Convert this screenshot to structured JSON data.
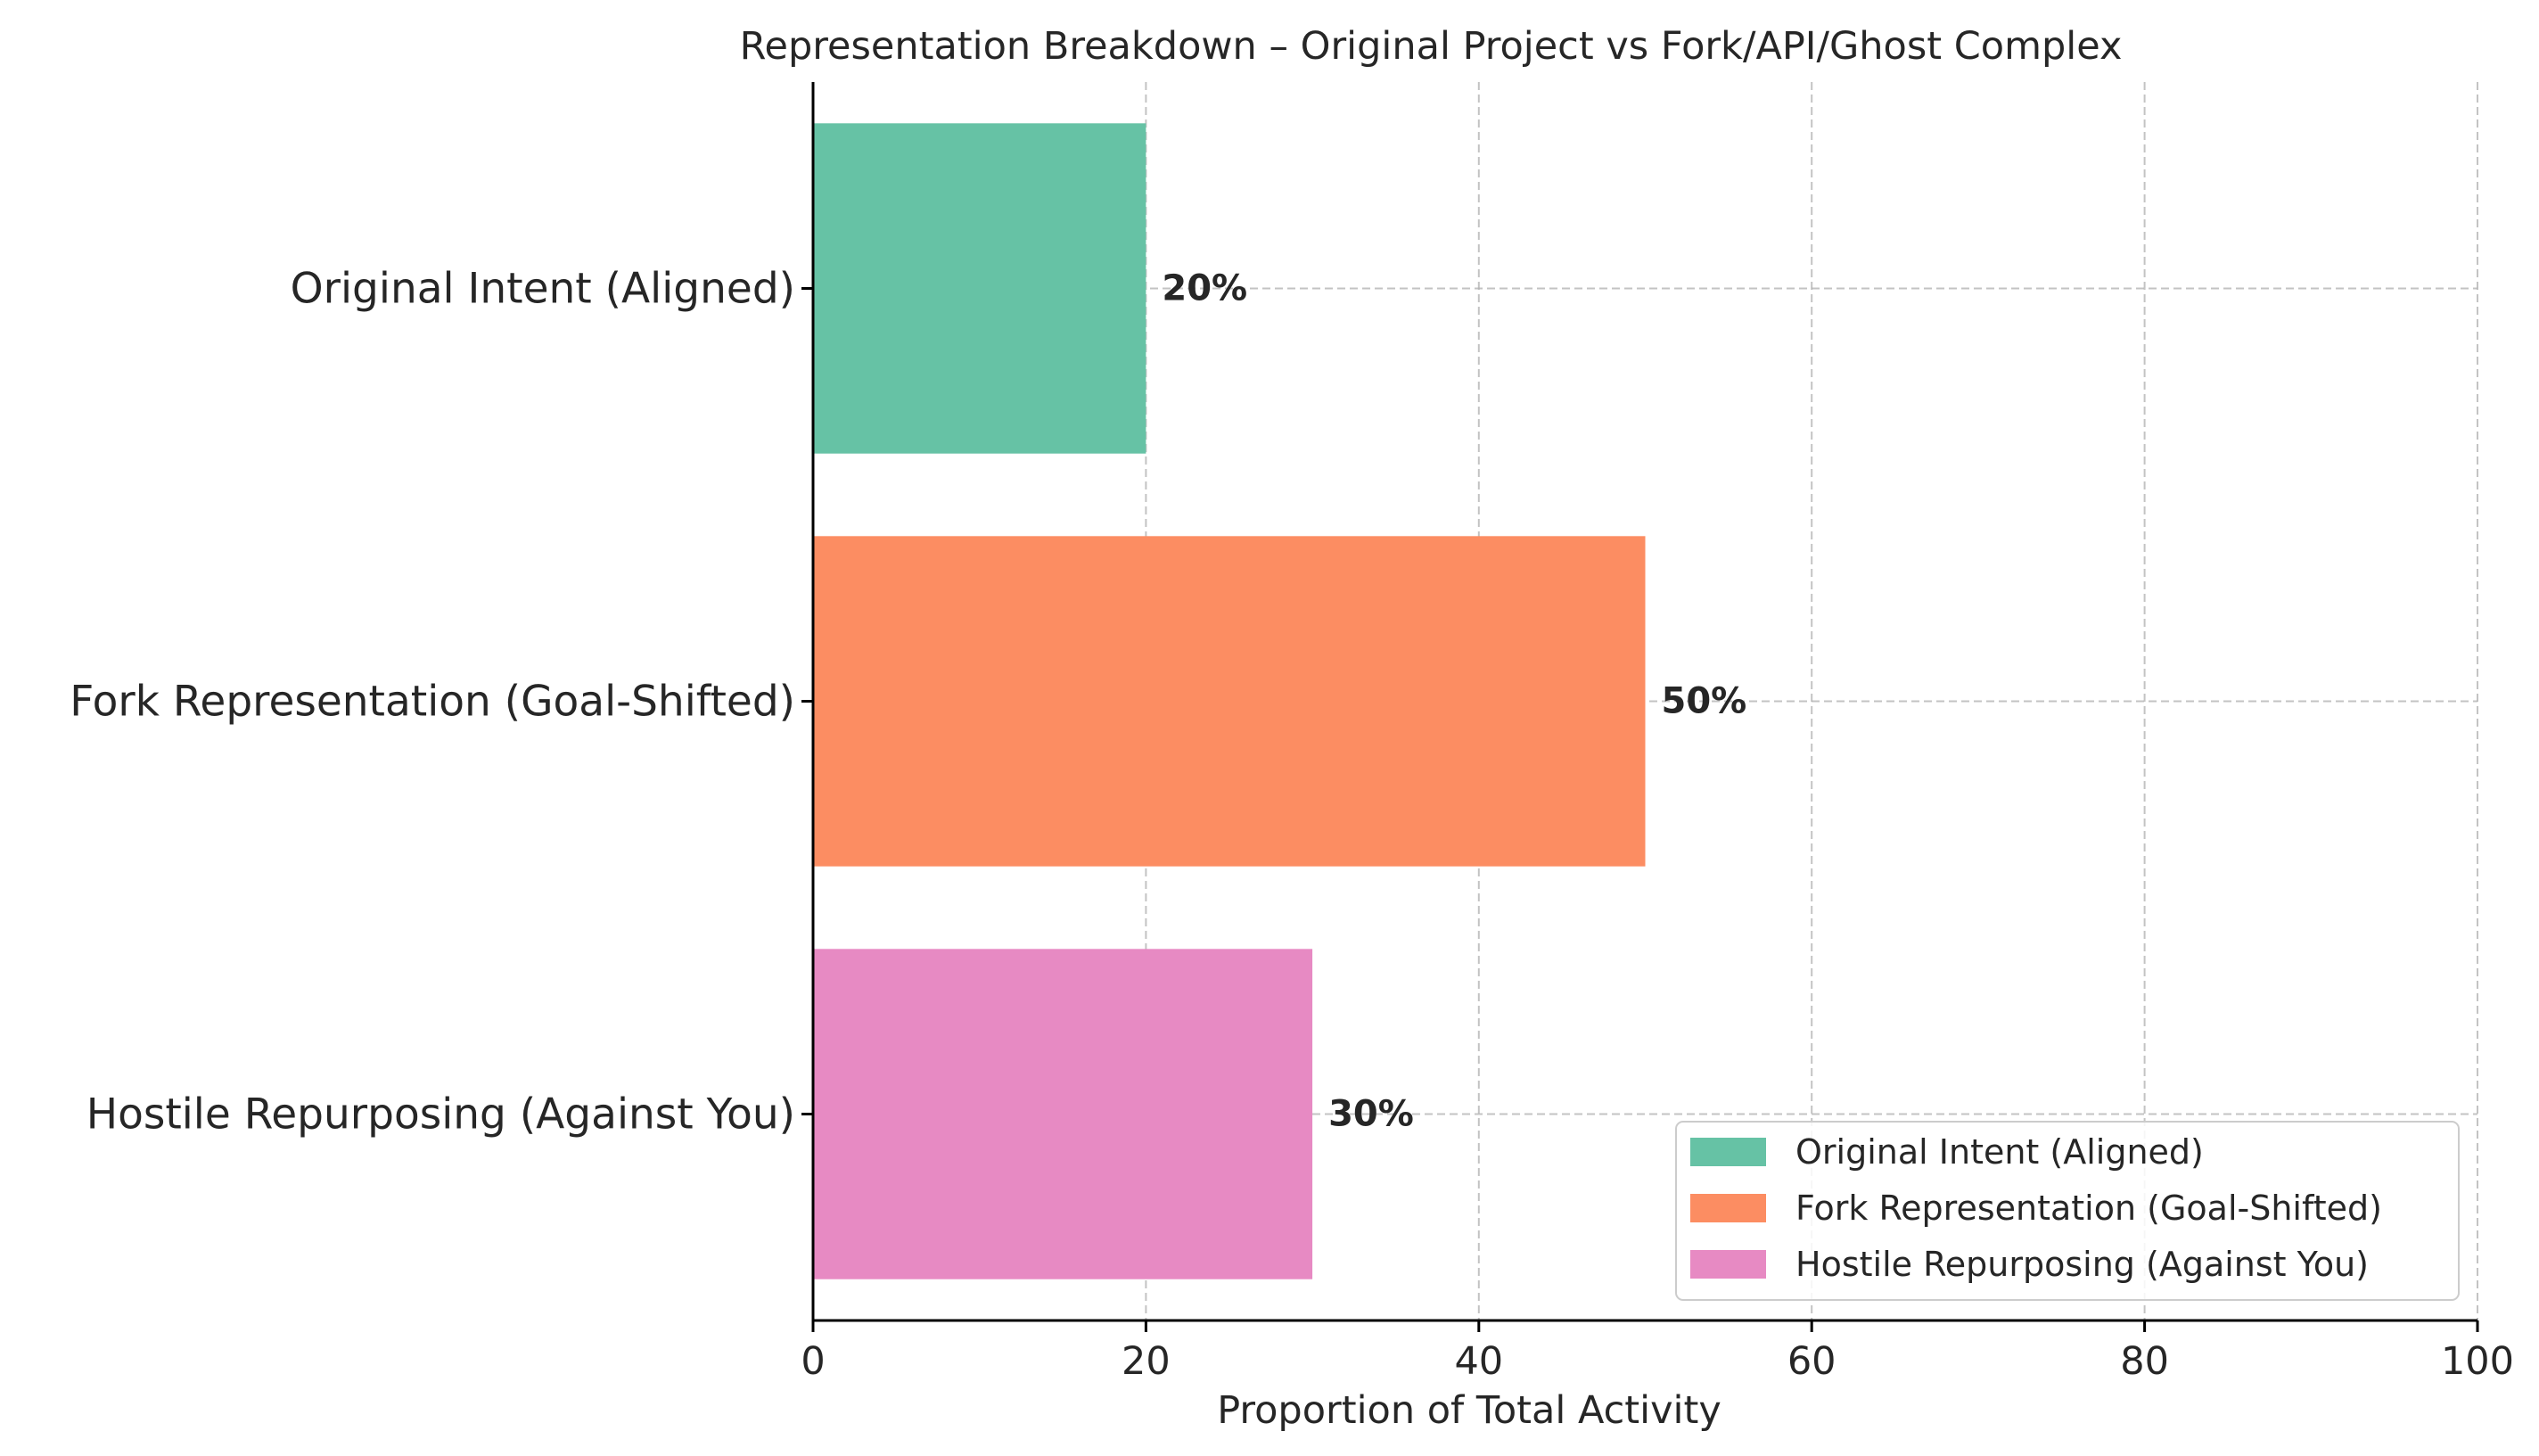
{
  "chart_data": {
    "type": "bar",
    "orientation": "horizontal",
    "title": "Representation Breakdown – Original Project vs Fork/API/Ghost Complex",
    "xlabel": "Proportion of Total Activity",
    "ylabel": "",
    "xlim": [
      0,
      100
    ],
    "xticks": [
      "0",
      "20",
      "40",
      "60",
      "80",
      "100"
    ],
    "grid": true,
    "legend_position": "lower-right",
    "categories": [
      "Original Intent (Aligned)",
      "Fork Representation (Goal-Shifted)",
      "Hostile Repurposing (Against You)"
    ],
    "values": [
      20,
      50,
      30
    ],
    "data_labels": [
      "20%",
      "50%",
      "30%"
    ],
    "colors": [
      "#66c2a5",
      "#fc8d62",
      "#e78ac3"
    ],
    "legend": [
      "Original Intent (Aligned)",
      "Fork Representation (Goal-Shifted)",
      "Hostile Repurposing (Against You)"
    ]
  }
}
